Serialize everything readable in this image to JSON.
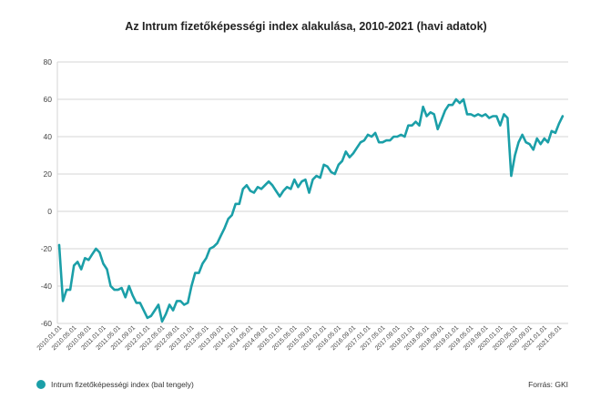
{
  "chart_data": {
    "type": "line",
    "title": "Az Intrum fizetőképességi index alakulása, 2010-2021 (havi adatok)",
    "ylim": [
      -60,
      80
    ],
    "yticks": [
      -60,
      -40,
      -20,
      0,
      20,
      40,
      60,
      80
    ],
    "grid": true,
    "xtick_labels": [
      "2010.01.01",
      "2010.05.01",
      "2010.09.01",
      "2011.01.01",
      "2011.05.01",
      "2011.09.01",
      "2012.01.01",
      "2012.05.01",
      "2012.09.01",
      "2013.01.01",
      "2013.05.01",
      "2013.09.01",
      "2014.01.01",
      "2014.05.01",
      "2014.09.01",
      "2015.01.01",
      "2015.05.01",
      "2015.09.01",
      "2016.01.01",
      "2016.05.01",
      "2016.09.01",
      "2017.01.01",
      "2017.05.01",
      "2017.09.01",
      "2018.01.01",
      "2018.05.01",
      "2018.09.01",
      "2019.01.01",
      "2019.05.01",
      "2019.09.01",
      "2020.01.01",
      "2020.05.01",
      "2020.09.01",
      "2021.01.01",
      "2021.05.01"
    ],
    "series": [
      {
        "name": "Intrum fizetőképességi index (bal tengely)",
        "color": "#1b9fa8",
        "start": "2010-01",
        "frequency": "monthly",
        "values": [
          -18,
          -48,
          -42,
          -42,
          -29,
          -27,
          -31,
          -25,
          -26,
          -23,
          -20,
          -22,
          -28,
          -31,
          -40,
          -42,
          -42,
          -41,
          -46,
          -40,
          -45,
          -49,
          -49,
          -53,
          -57,
          -56,
          -53,
          -50,
          -59,
          -55,
          -50,
          -53,
          -48,
          -48,
          -50,
          -49,
          -40,
          -33,
          -33,
          -28,
          -25,
          -20,
          -19,
          -17,
          -13,
          -9,
          -4,
          -2,
          4,
          4,
          12,
          14,
          11,
          10,
          13,
          12,
          14,
          16,
          14,
          11,
          8,
          11,
          13,
          12,
          17,
          13,
          16,
          17,
          10,
          17,
          19,
          18,
          25,
          24,
          21,
          20,
          25,
          27,
          32,
          29,
          31,
          34,
          37,
          38,
          41,
          40,
          42,
          37,
          37,
          38,
          38,
          40,
          40,
          41,
          40,
          46,
          46,
          48,
          46,
          56,
          51,
          53,
          52,
          44,
          49,
          54,
          57,
          57,
          60,
          58,
          60,
          52,
          52,
          51,
          52,
          51,
          52,
          50,
          51,
          51,
          46,
          52,
          50,
          19,
          30,
          37,
          41,
          37,
          36,
          33,
          39,
          36,
          39,
          37,
          43,
          42,
          47,
          51
        ]
      }
    ],
    "legend_position": "bottom-left",
    "legend_label": "Intrum fizetőképességi index (bal tengely)",
    "source": "Forrás: GKI"
  }
}
